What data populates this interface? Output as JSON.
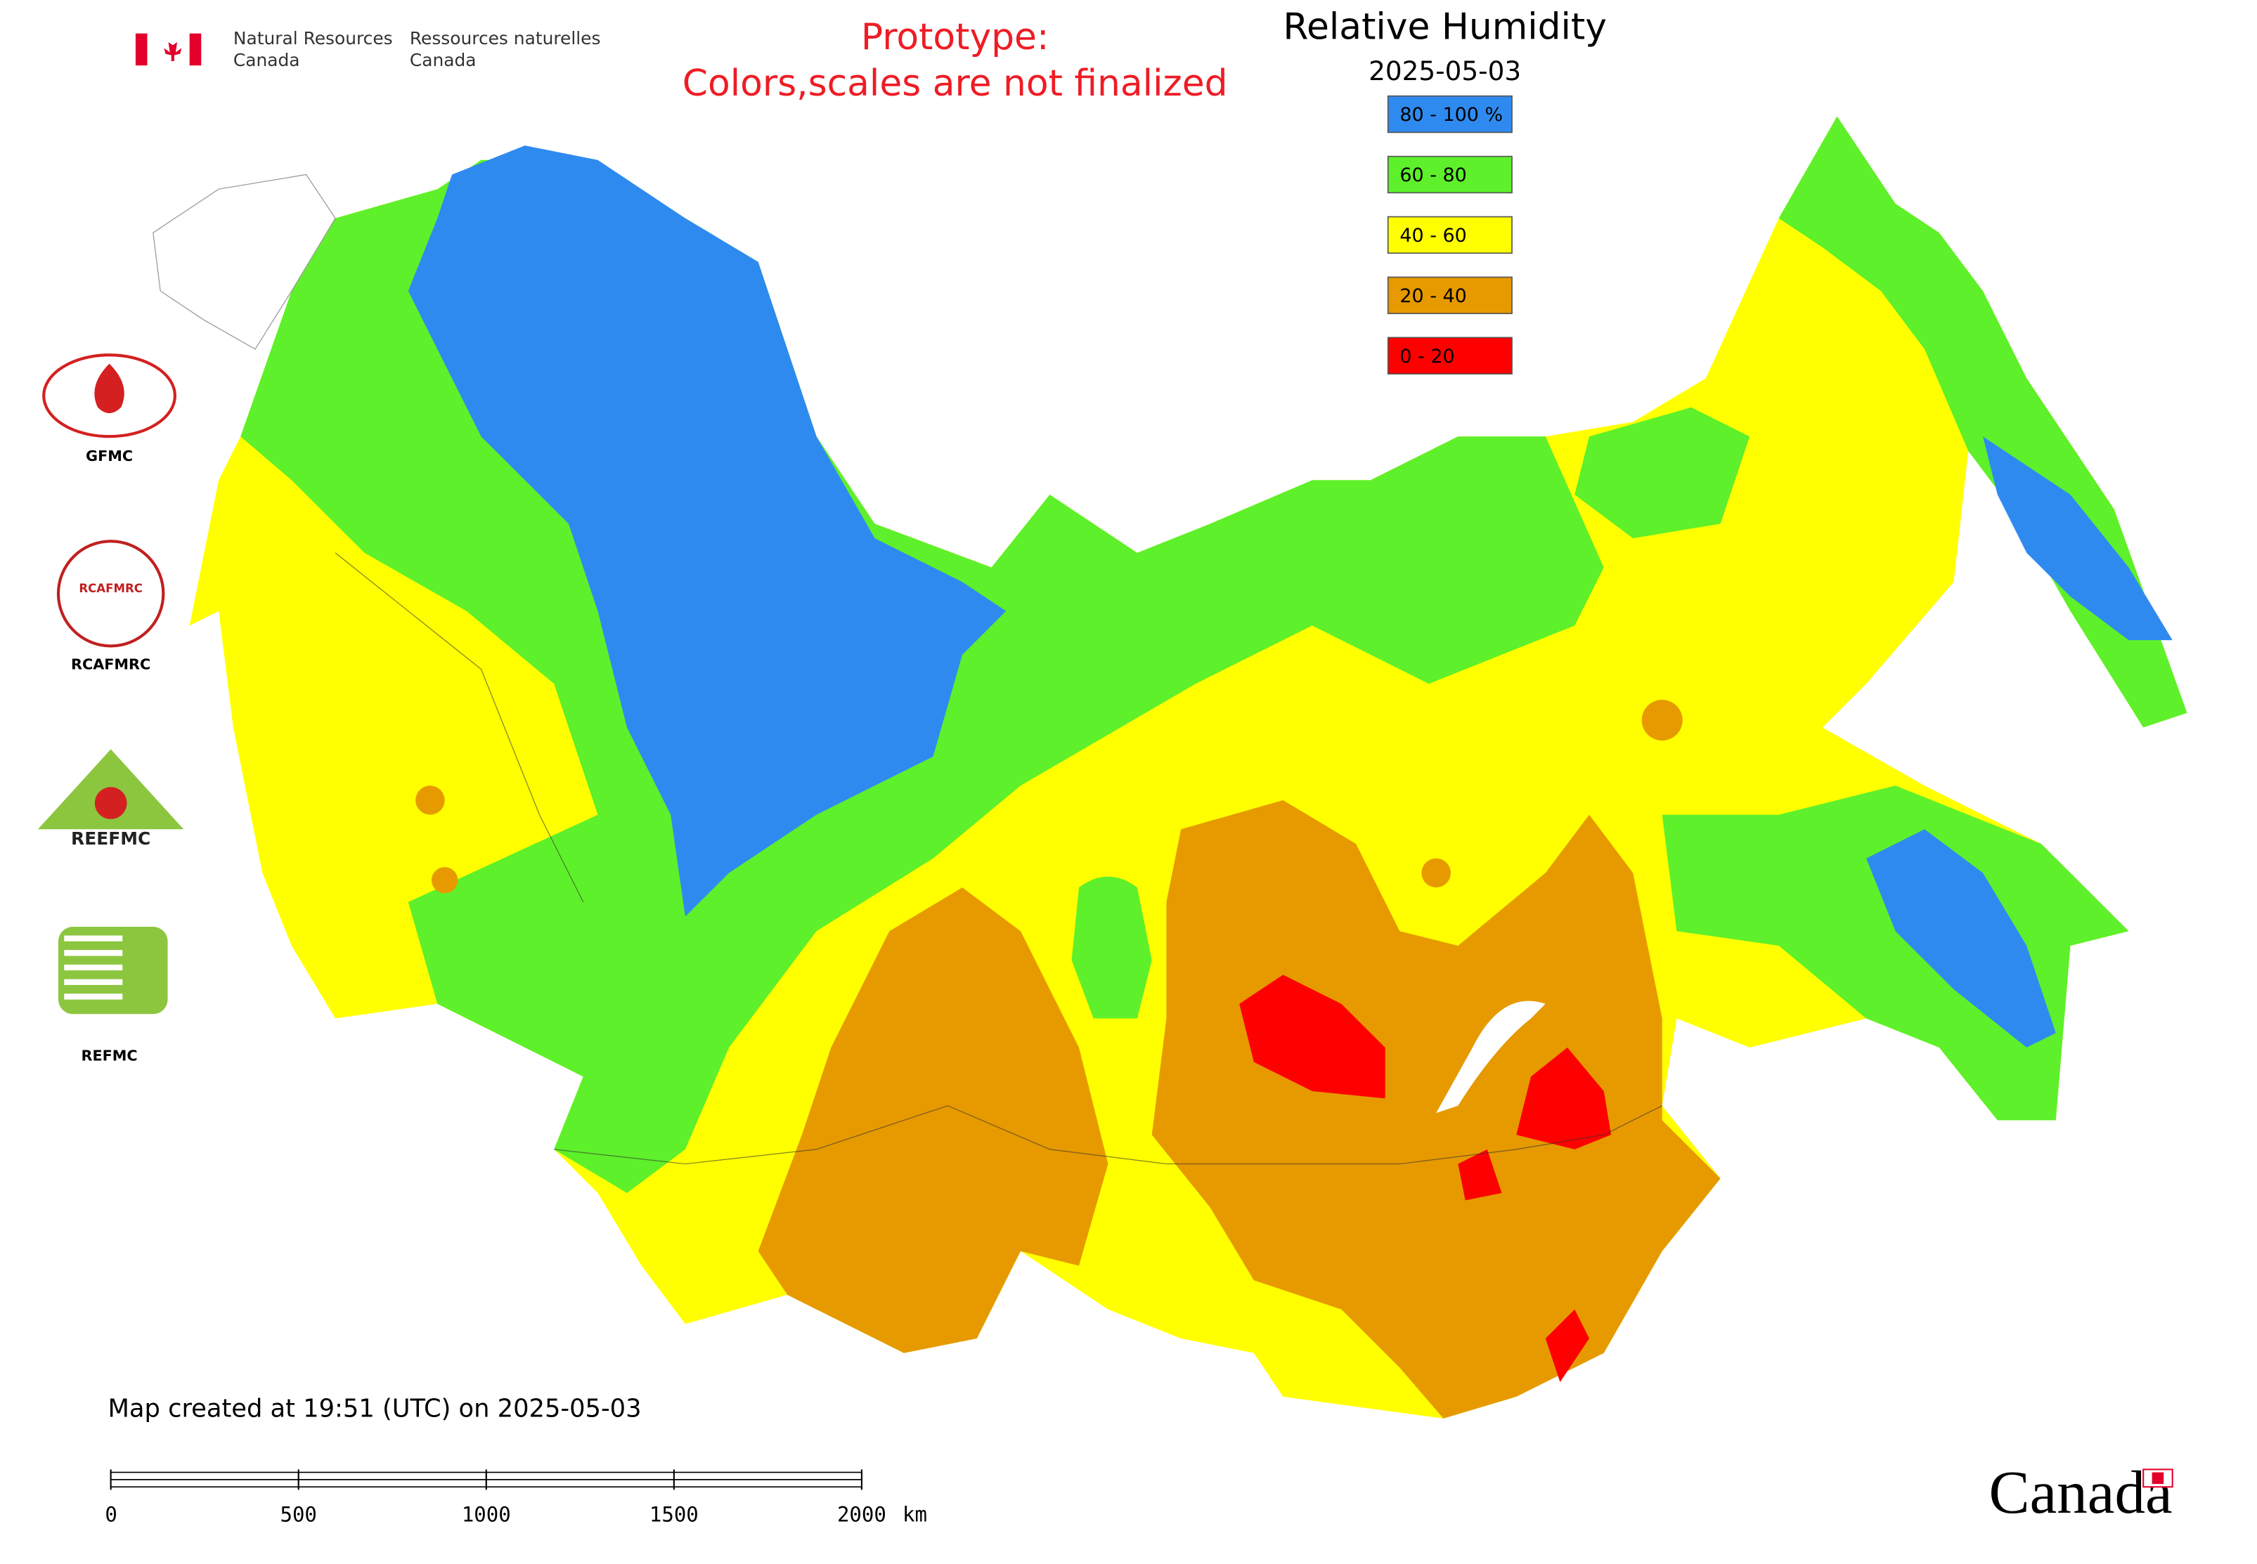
{
  "header": {
    "agency_en_1": "Natural Resources",
    "agency_en_2": "Canada",
    "agency_fr_1": "Ressources naturelles",
    "agency_fr_2": "Canada"
  },
  "notice": {
    "line1": "Prototype:",
    "line2": "Colors,scales are not finalized"
  },
  "legend": {
    "title": "Relative Humidity",
    "date": "2025-05-03",
    "items": [
      {
        "label": "80 - 100 %",
        "color": "#2f8af0"
      },
      {
        "label": "60 - 80",
        "color": "#5ef02a"
      },
      {
        "label": "40 - 60",
        "color": "#ffff00"
      },
      {
        "label": "20 - 40",
        "color": "#e69a00"
      },
      {
        "label": "0 - 20",
        "color": "#ff0000"
      }
    ]
  },
  "logos": [
    "GFMC",
    "RCAFMRC",
    "REEFMC",
    "REFMC"
  ],
  "footer": {
    "created": "Map created at 19:51 (UTC) on 2025-05-03",
    "wordmark": "Canada"
  },
  "scale_bar": {
    "ticks": [
      0,
      500,
      1000,
      1500,
      2000
    ],
    "unit": "km"
  }
}
